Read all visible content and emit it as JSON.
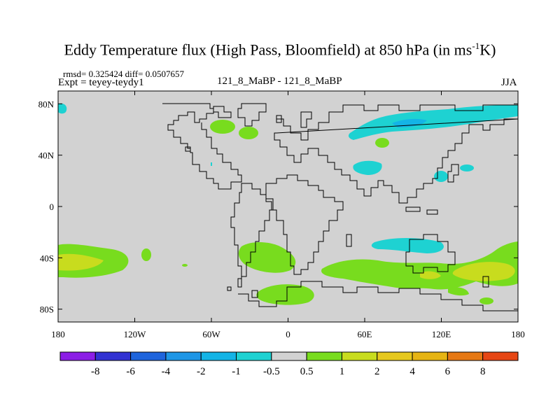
{
  "title_main": "Eddy Temperature flux (High Pass, Bloomfield) at 850 hPa (in ms",
  "title_sup": "-1",
  "title_end": "K)",
  "stats": "rmsd= 0.325424 diff= 0.0507657",
  "expt": "Expt = teyey-teydy1",
  "center_label": "121_8_MaBP - 121_8_MaBP",
  "season": "JJA",
  "lat_ticks": [
    {
      "label": "80N",
      "lat": 80
    },
    {
      "label": "40N",
      "lat": 40
    },
    {
      "label": "0",
      "lat": 0
    },
    {
      "label": "40S",
      "lat": -40
    },
    {
      "label": "80S",
      "lat": -80
    }
  ],
  "lon_ticks": [
    {
      "label": "180",
      "lon": -180
    },
    {
      "label": "120W",
      "lon": -120
    },
    {
      "label": "60W",
      "lon": -60
    },
    {
      "label": "0",
      "lon": 0
    },
    {
      "label": "60E",
      "lon": 60
    },
    {
      "label": "120E",
      "lon": 120
    },
    {
      "label": "180",
      "lon": 180
    }
  ],
  "colorbar": {
    "colors": [
      "#8c1ee6",
      "#3232d2",
      "#1e64dc",
      "#1e96e6",
      "#14b4e6",
      "#1ed2d2",
      "#d2d2d2",
      "#78dc1e",
      "#c8dc1e",
      "#e6c81e",
      "#e6b414",
      "#e67814",
      "#e64614"
    ],
    "labels": [
      "-8",
      "-6",
      "-4",
      "-2",
      "-1",
      "-0.5",
      "0.5",
      "1",
      "2",
      "4",
      "6",
      "8"
    ]
  }
}
